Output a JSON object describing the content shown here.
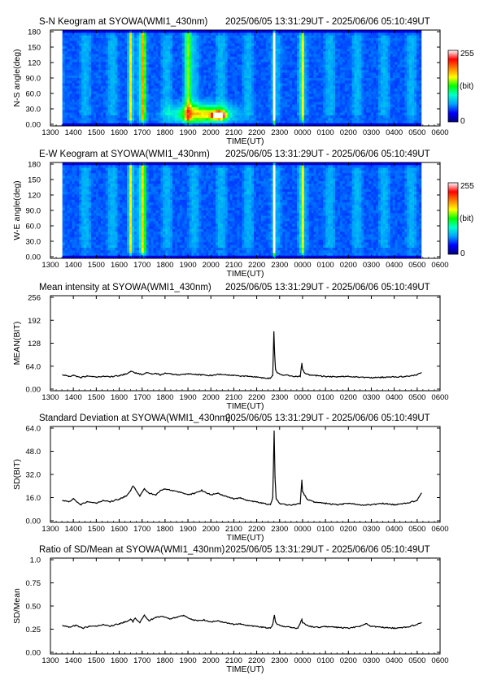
{
  "page": {
    "station": "SYOWA",
    "instrument": "WMI1_430nm",
    "time_range": "2025/06/05 13:31:29UT - 2025/06/06 05:10:49UT"
  },
  "x_axis": {
    "label": "TIME(UT)",
    "ticks": [
      "1300",
      "1400",
      "1500",
      "1600",
      "1700",
      "1800",
      "1900",
      "2000",
      "2100",
      "2200",
      "2300",
      "0000",
      "0100",
      "0200",
      "0300",
      "0400",
      "0500",
      "0600"
    ],
    "range_hours": [
      13,
      30
    ],
    "data_start_hours": 13.525,
    "data_end_hours": 29.18
  },
  "colorbar": {
    "ticks": [
      "255",
      "(bit)",
      "0"
    ],
    "colors": [
      "#000080",
      "#0000ff",
      "#00a0ff",
      "#00ffd0",
      "#00ff00",
      "#ffff00",
      "#ff8000",
      "#ff0000",
      "#ffffff"
    ]
  },
  "chart_data": [
    {
      "type": "heatmap",
      "title": "S-N Keogram at SYOWA(WMI1_430nm)",
      "subtitle": "2025/06/05 13:31:29UT - 2025/06/06 05:10:49UT",
      "xlabel": "TIME(UT)",
      "ylabel": "N-S angle(deg)",
      "yticks": [
        "0.00",
        "30.0",
        "60.0",
        "90.0",
        "120",
        "150",
        "180"
      ],
      "ylim": [
        0,
        180
      ],
      "zlim": [
        0,
        255
      ],
      "features": [
        {
          "kind": "band",
          "time": 16.5,
          "width": 0.12,
          "level": 0.45
        },
        {
          "kind": "band",
          "time": 17.05,
          "width": 0.15,
          "level": 0.5
        },
        {
          "kind": "band",
          "time": 19.0,
          "width": 0.2,
          "level": 0.35
        },
        {
          "kind": "band",
          "time": 22.77,
          "width": 0.06,
          "level": 1.0
        },
        {
          "kind": "band",
          "time": 23.98,
          "width": 0.07,
          "level": 0.55
        },
        {
          "kind": "spot",
          "time": 20.35,
          "angle": 20,
          "width": 0.35,
          "height": 8,
          "level": 1.0
        },
        {
          "kind": "spot",
          "time": 19.6,
          "angle": 22,
          "width": 1.5,
          "height": 22,
          "level": 0.45
        }
      ]
    },
    {
      "type": "heatmap",
      "title": "E-W Keogram at SYOWA(WMI1_430nm)",
      "subtitle": "2025/06/05 13:31:29UT - 2025/06/06 05:10:49UT",
      "xlabel": "TIME(UT)",
      "ylabel": "W-E angle(deg)",
      "yticks": [
        "0.00",
        "30.0",
        "60.0",
        "90.0",
        "120",
        "150",
        "180"
      ],
      "ylim": [
        0,
        180
      ],
      "zlim": [
        0,
        255
      ],
      "features": [
        {
          "kind": "band",
          "time": 16.5,
          "width": 0.12,
          "level": 0.45
        },
        {
          "kind": "band",
          "time": 17.05,
          "width": 0.15,
          "level": 0.45
        },
        {
          "kind": "band",
          "time": 22.77,
          "width": 0.06,
          "level": 1.0
        },
        {
          "kind": "band",
          "time": 23.98,
          "width": 0.07,
          "level": 0.55
        }
      ]
    },
    {
      "type": "line",
      "title": "Mean intensity at SYOWA(WMI1_430nm)",
      "subtitle": "2025/06/05 13:31:29UT - 2025/06/06 05:10:49UT",
      "xlabel": "TIME(UT)",
      "ylabel": "MEAN(BIT)",
      "yticks": [
        "0.00",
        "64.0",
        "128",
        "192",
        "256"
      ],
      "ylim": [
        0,
        256
      ],
      "x": [
        13.53,
        13.8,
        14.0,
        14.3,
        14.6,
        15.0,
        15.3,
        15.6,
        16.0,
        16.3,
        16.5,
        16.7,
        17.0,
        17.2,
        17.4,
        17.6,
        17.8,
        18.0,
        18.3,
        18.6,
        19.0,
        19.3,
        19.6,
        20.0,
        20.3,
        20.6,
        21.0,
        21.3,
        21.6,
        22.0,
        22.3,
        22.6,
        22.7,
        22.75,
        22.78,
        22.82,
        22.9,
        23.1,
        23.4,
        23.7,
        23.9,
        23.97,
        24.0,
        24.1,
        24.3,
        24.6,
        25.0,
        25.5,
        26.0,
        26.5,
        27.0,
        27.5,
        28.0,
        28.5,
        29.0,
        29.18
      ],
      "y": [
        40,
        35,
        38,
        32,
        36,
        33,
        36,
        34,
        38,
        42,
        50,
        45,
        41,
        46,
        42,
        44,
        40,
        45,
        42,
        40,
        43,
        41,
        40,
        38,
        42,
        40,
        38,
        36,
        37,
        34,
        31,
        30,
        38,
        160,
        100,
        55,
        45,
        40,
        38,
        35,
        36,
        72,
        55,
        45,
        40,
        38,
        35,
        34,
        36,
        33,
        32,
        33,
        34,
        35,
        40,
        46
      ]
    },
    {
      "type": "line",
      "title": "Standard Deviation at SYOWA(WMI1_430nm)",
      "subtitle": "2025/06/05 13:31:29UT - 2025/06/06 05:10:49UT",
      "xlabel": "TIME(UT)",
      "ylabel": "SD(BIT)",
      "yticks": [
        "0.00",
        "16.0",
        "32.0",
        "48.0",
        "64.0"
      ],
      "ylim": [
        0,
        64
      ],
      "x": [
        13.53,
        13.8,
        14.0,
        14.3,
        14.6,
        15.0,
        15.3,
        15.6,
        16.0,
        16.3,
        16.5,
        16.6,
        16.7,
        16.9,
        17.1,
        17.3,
        17.6,
        17.8,
        18.0,
        18.3,
        18.6,
        19.0,
        19.3,
        19.6,
        20.0,
        20.3,
        20.6,
        21.0,
        21.3,
        21.6,
        22.0,
        22.3,
        22.6,
        22.7,
        22.76,
        22.8,
        22.85,
        23.0,
        23.3,
        23.6,
        23.9,
        23.97,
        24.0,
        24.2,
        24.5,
        25.0,
        25.5,
        26.0,
        26.5,
        27.0,
        27.5,
        28.0,
        28.5,
        29.0,
        29.18
      ],
      "y": [
        14,
        13,
        15,
        11,
        13,
        12,
        14,
        13,
        15,
        17,
        21,
        24,
        22,
        17,
        22,
        19,
        18,
        21,
        22,
        21,
        20,
        18,
        19,
        21,
        18,
        19,
        17,
        15,
        16,
        14,
        13,
        12,
        11,
        16,
        62,
        30,
        15,
        12,
        11,
        11,
        12,
        28,
        20,
        15,
        13,
        12,
        11,
        12,
        11,
        11,
        12,
        11,
        12,
        14,
        19
      ]
    },
    {
      "type": "line",
      "title": "Ratio of SD/Mean at SYOWA(WMI1_430nm)",
      "subtitle": "2025/06/05 13:31:29UT - 2025/06/06 05:10:49UT",
      "xlabel": "TIME(UT)",
      "ylabel": "SD/Mean",
      "yticks": [
        "0.00",
        "0.25",
        "0.50",
        "0.75",
        "1.0"
      ],
      "ylim": [
        0,
        1
      ],
      "x": [
        13.53,
        13.8,
        14.1,
        14.4,
        14.7,
        15.0,
        15.3,
        15.6,
        16.0,
        16.3,
        16.5,
        16.6,
        16.7,
        16.9,
        17.1,
        17.3,
        17.6,
        17.9,
        18.2,
        18.5,
        18.8,
        19.1,
        19.4,
        19.7,
        20.0,
        20.3,
        20.6,
        21.0,
        21.3,
        21.6,
        22.0,
        22.3,
        22.6,
        22.7,
        22.77,
        22.82,
        22.9,
        23.2,
        23.5,
        23.8,
        23.97,
        24.0,
        24.3,
        24.7,
        25.0,
        25.5,
        26.0,
        26.5,
        26.8,
        27.0,
        27.5,
        28.0,
        28.5,
        29.0,
        29.18
      ],
      "y": [
        0.29,
        0.27,
        0.29,
        0.26,
        0.28,
        0.28,
        0.3,
        0.28,
        0.31,
        0.33,
        0.36,
        0.33,
        0.37,
        0.32,
        0.4,
        0.34,
        0.38,
        0.39,
        0.36,
        0.38,
        0.4,
        0.36,
        0.34,
        0.35,
        0.33,
        0.34,
        0.32,
        0.3,
        0.31,
        0.29,
        0.28,
        0.27,
        0.26,
        0.3,
        0.4,
        0.33,
        0.3,
        0.28,
        0.27,
        0.26,
        0.36,
        0.32,
        0.28,
        0.27,
        0.28,
        0.27,
        0.26,
        0.28,
        0.31,
        0.28,
        0.27,
        0.26,
        0.27,
        0.3,
        0.32
      ]
    }
  ]
}
